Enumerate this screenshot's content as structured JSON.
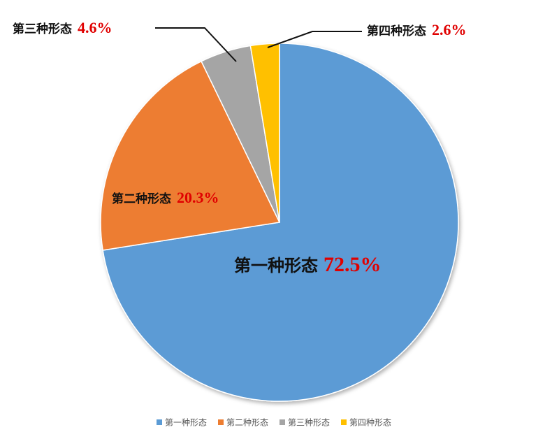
{
  "chart_data": {
    "type": "pie",
    "categories": [
      "第一种形态",
      "第二种形态",
      "第三种形态",
      "第四种形态"
    ],
    "values": [
      72.5,
      20.3,
      4.6,
      2.6
    ],
    "value_labels": [
      "72.5%",
      "20.3%",
      "4.6%",
      "2.6%"
    ],
    "colors": [
      "#5b9bd5",
      "#ed7d31",
      "#a5a5a5",
      "#ffc000"
    ],
    "legend": "bottom"
  }
}
